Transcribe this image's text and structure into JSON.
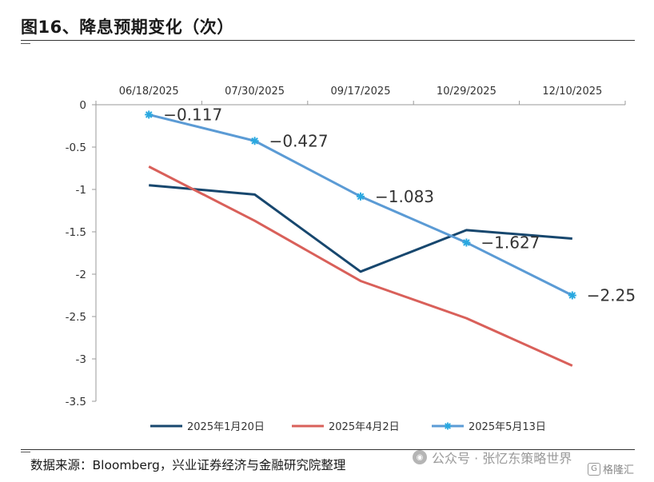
{
  "title": "图16、降息预期变化（次）",
  "source": "数据来源：Bloomberg，兴业证券经济与金融研究院整理",
  "watermark": {
    "text": "公众号 · 张忆东策略世界",
    "icon": "wechat-icon"
  },
  "brand": {
    "icon_text": "G",
    "text": "格隆汇"
  },
  "chart_data": {
    "type": "line",
    "title": "",
    "xlabel": "",
    "ylabel": "",
    "categories": [
      "06/18/2025",
      "07/30/2025",
      "09/17/2025",
      "10/29/2025",
      "12/10/2025"
    ],
    "ylim": [
      -3.5,
      0
    ],
    "yticks": [
      0,
      -0.5,
      -1,
      -1.5,
      -2,
      -2.5,
      -3,
      -3.5
    ],
    "ytick_labels": [
      "0",
      "-0.5",
      "-1",
      "-1.5",
      "-2",
      "-2.5",
      "-3",
      "-3.5"
    ],
    "x_axis_position": "top",
    "grid": false,
    "legend": "bottom",
    "series": [
      {
        "name": "2025年1月20日",
        "values": [
          -0.95,
          -1.06,
          -1.97,
          -1.48,
          -1.58
        ],
        "color": "#17476e",
        "marker": "none",
        "labels": null
      },
      {
        "name": "2025年4月2日",
        "values": [
          -0.73,
          -1.37,
          -2.08,
          -2.52,
          -3.08
        ],
        "color": "#d9605a",
        "marker": "none",
        "labels": null
      },
      {
        "name": "2025年5月13日",
        "values": [
          -0.117,
          -0.427,
          -1.083,
          -1.627,
          -2.25
        ],
        "color": "#5b9bd5",
        "marker": "star",
        "labels": [
          "−0.117",
          "−0.427",
          "−1.083",
          "−1.627",
          "−2.25"
        ]
      }
    ]
  }
}
